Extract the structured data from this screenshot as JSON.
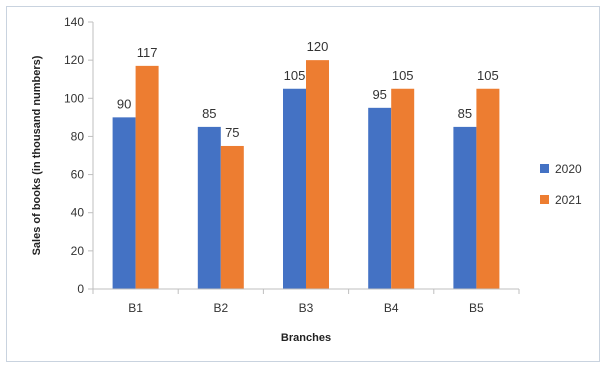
{
  "chart_data": {
    "type": "bar",
    "categories": [
      "B1",
      "B2",
      "B3",
      "B4",
      "B5"
    ],
    "series": [
      {
        "name": "2020",
        "values": [
          90,
          85,
          105,
          95,
          85
        ],
        "color": "#4472c4"
      },
      {
        "name": "2021",
        "values": [
          117,
          75,
          120,
          105,
          105
        ],
        "color": "#ed7d31"
      }
    ],
    "xlabel": "Branches",
    "ylabel": "Sales of books (in thousand numbers)",
    "ylim": [
      0,
      140
    ],
    "yticks": [
      0,
      20,
      40,
      60,
      80,
      100,
      120,
      140
    ],
    "grid": false,
    "legend_position": "right"
  }
}
